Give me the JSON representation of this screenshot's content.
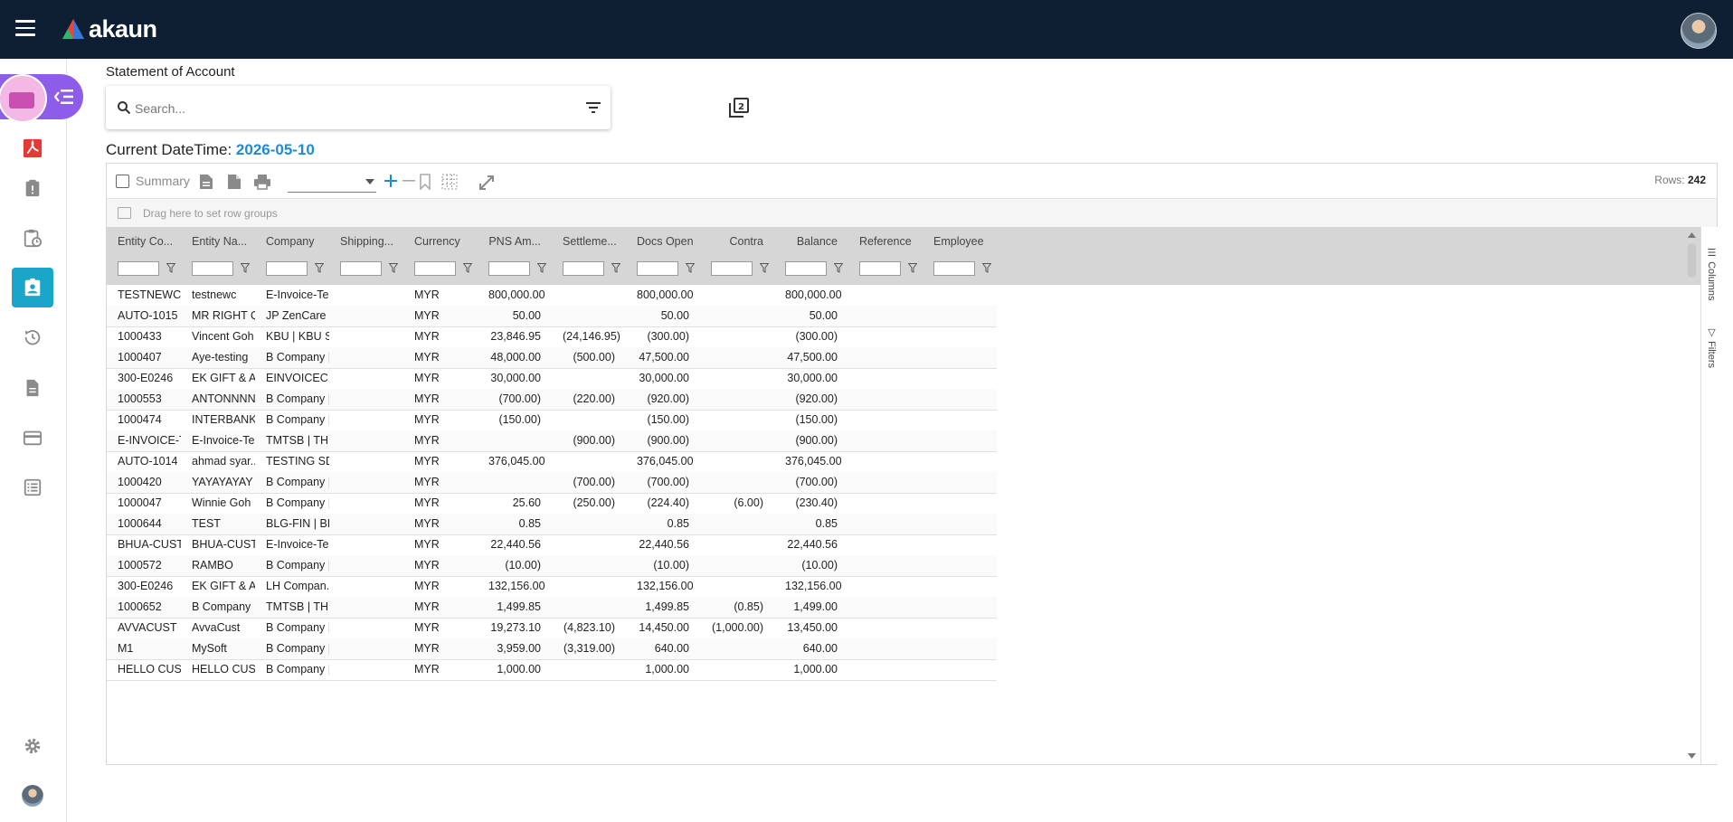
{
  "app": {
    "name": "akaun"
  },
  "page": {
    "title": "Statement of Account"
  },
  "search": {
    "placeholder": "Search...",
    "value": ""
  },
  "datetime": {
    "label": "Current DateTime:",
    "value": "2026-05-10"
  },
  "toolbar": {
    "summary_label": "Summary",
    "rows_label": "Rows:",
    "rows_count": "242"
  },
  "groupbar": {
    "text": "Drag here to set row groups"
  },
  "side_panel": {
    "columns": "Columns",
    "filters": "Filters"
  },
  "sidebar_icons": [
    "app-switcher-icon",
    "pdf-icon",
    "clipboard-alert-icon",
    "clipboard-clock-icon",
    "account-box-icon",
    "history-icon",
    "document-icon",
    "credit-card-icon",
    "list-icon",
    "gear-icon",
    "avatar"
  ],
  "colors": {
    "topbar": "#0e1e33",
    "active": "#19a6c9",
    "accent": "#1f8ad6",
    "pill": "#8d5ce8"
  },
  "columns": [
    "Entity Co...",
    "Entity Na...",
    "Company",
    "Shipping...",
    "Currency",
    "PNS Am...",
    "Settleme...",
    "Docs Open",
    "Contra",
    "Balance",
    "Reference",
    "Employee"
  ],
  "rows": [
    [
      "TESTNEWC",
      "testnewc",
      "E-Invoice-Te...",
      "",
      "MYR",
      "800,000.00",
      "",
      "800,000.00",
      "",
      "800,000.00",
      "",
      ""
    ],
    [
      "AUTO-1015",
      "MR RIGHT Q...",
      "JP ZenCare |...",
      "",
      "MYR",
      "50.00",
      "",
      "50.00",
      "",
      "50.00",
      "",
      ""
    ],
    [
      "1000433",
      "Vincent Goh",
      "KBU | KBU S...",
      "",
      "MYR",
      "23,846.95",
      "(24,146.95)",
      "(300.00)",
      "",
      "(300.00)",
      "",
      ""
    ],
    [
      "1000407",
      "Aye-testing",
      "B Company |...",
      "",
      "MYR",
      "48,000.00",
      "(500.00)",
      "47,500.00",
      "",
      "47,500.00",
      "",
      ""
    ],
    [
      "300-E0246",
      "EK GIFT & A...",
      "EINVOICEC...",
      "",
      "MYR",
      "30,000.00",
      "",
      "30,000.00",
      "",
      "30,000.00",
      "",
      ""
    ],
    [
      "1000553",
      "ANTONNNN",
      "B Company |...",
      "",
      "MYR",
      "(700.00)",
      "(220.00)",
      "(920.00)",
      "",
      "(920.00)",
      "",
      ""
    ],
    [
      "1000474",
      "INTERBANK ...",
      "B Company |...",
      "",
      "MYR",
      "(150.00)",
      "",
      "(150.00)",
      "",
      "(150.00)",
      "",
      ""
    ],
    [
      "E-INVOICE-T...",
      "E-Invoice-Te...",
      "TMTSB | TH...",
      "",
      "MYR",
      "",
      "(900.00)",
      "(900.00)",
      "",
      "(900.00)",
      "",
      ""
    ],
    [
      "AUTO-1014",
      "ahmad syar...",
      "TESTING SD...",
      "",
      "MYR",
      "376,045.00",
      "",
      "376,045.00",
      "",
      "376,045.00",
      "",
      ""
    ],
    [
      "1000420",
      "YAYAYAYAY",
      "B Company |...",
      "",
      "MYR",
      "",
      "(700.00)",
      "(700.00)",
      "",
      "(700.00)",
      "",
      ""
    ],
    [
      "1000047",
      "Winnie Goh",
      "B Company |...",
      "",
      "MYR",
      "25.60",
      "(250.00)",
      "(224.40)",
      "(6.00)",
      "(230.40)",
      "",
      ""
    ],
    [
      "1000644",
      "TEST",
      "BLG-FIN | BL...",
      "",
      "MYR",
      "0.85",
      "",
      "0.85",
      "",
      "0.85",
      "",
      ""
    ],
    [
      "BHUA-CUST...",
      "BHUA-CUST...",
      "E-Invoice-Te...",
      "",
      "MYR",
      "22,440.56",
      "",
      "22,440.56",
      "",
      "22,440.56",
      "",
      ""
    ],
    [
      "1000572",
      "RAMBO",
      "B Company |...",
      "",
      "MYR",
      "(10.00)",
      "",
      "(10.00)",
      "",
      "(10.00)",
      "",
      ""
    ],
    [
      "300-E0246",
      "EK GIFT & A...",
      "LH Compan...",
      "",
      "MYR",
      "132,156.00",
      "",
      "132,156.00",
      "",
      "132,156.00",
      "",
      ""
    ],
    [
      "1000652",
      "B Company",
      "TMTSB | TH...",
      "",
      "MYR",
      "1,499.85",
      "",
      "1,499.85",
      "(0.85)",
      "1,499.00",
      "",
      ""
    ],
    [
      "AVVACUST",
      "AvvaCust",
      "B Company |...",
      "",
      "MYR",
      "19,273.10",
      "(4,823.10)",
      "14,450.00",
      "(1,000.00)",
      "13,450.00",
      "",
      ""
    ],
    [
      "M1",
      "MySoft",
      "B Company |...",
      "",
      "MYR",
      "3,959.00",
      "(3,319.00)",
      "640.00",
      "",
      "640.00",
      "",
      ""
    ],
    [
      "HELLO CUST...",
      "HELLO CUST...",
      "B Company |...",
      "",
      "MYR",
      "1,000.00",
      "",
      "1,000.00",
      "",
      "1,000.00",
      "",
      ""
    ]
  ]
}
